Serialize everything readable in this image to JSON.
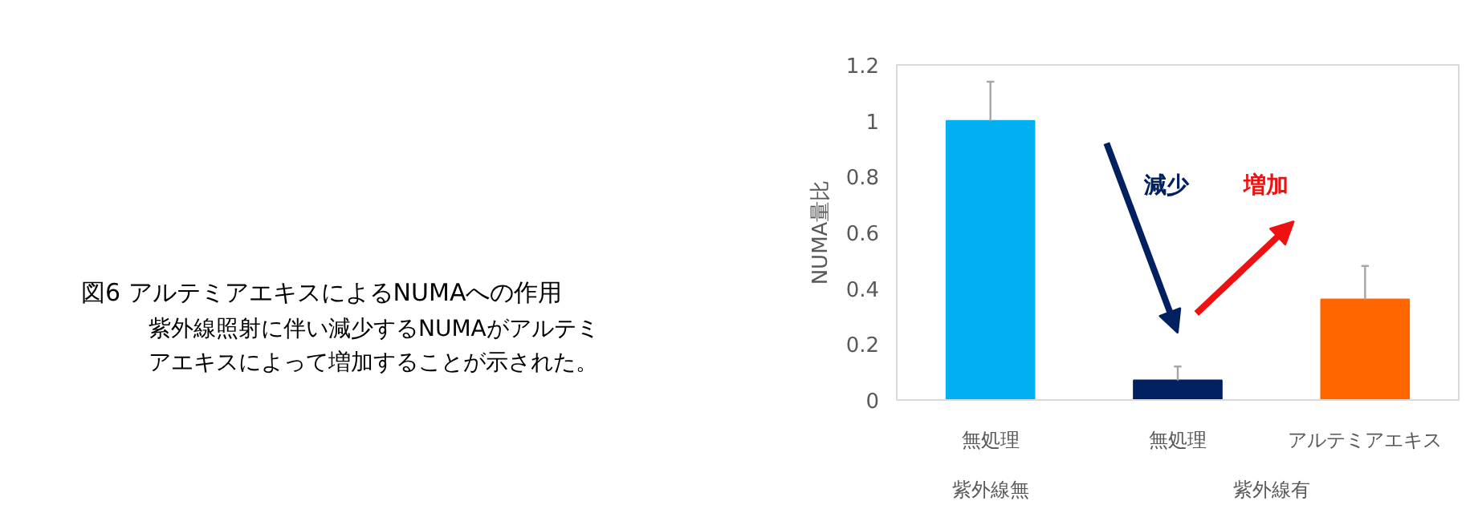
{
  "chart_data": {
    "type": "bar",
    "title": "図6 アルテミアエキスによるNUMAへの作用",
    "subtitle": "紫外線照射に伴い減少するNUMAがアルテミアエキスによって増加することが示された。",
    "ylabel": "NUMA量比",
    "categories": [
      "無処理",
      "無処理",
      "アルテミアエキス"
    ],
    "values": [
      1.0,
      0.07,
      0.36
    ],
    "errors": [
      [
        1.0,
        1.14
      ],
      [
        0.07,
        0.12
      ],
      [
        0.36,
        0.48
      ]
    ],
    "colors": [
      "#00b0f0",
      "#002060",
      "#ff6600"
    ],
    "ylim": [
      0,
      1.2
    ],
    "yticks": [
      0,
      0.2,
      0.4,
      0.6,
      0.8,
      {
        "value": 1,
        "label": "1"
      },
      1.2
    ],
    "annotations": [
      "紫外線無",
      "紫外線有",
      "減少",
      "増加"
    ]
  }
}
